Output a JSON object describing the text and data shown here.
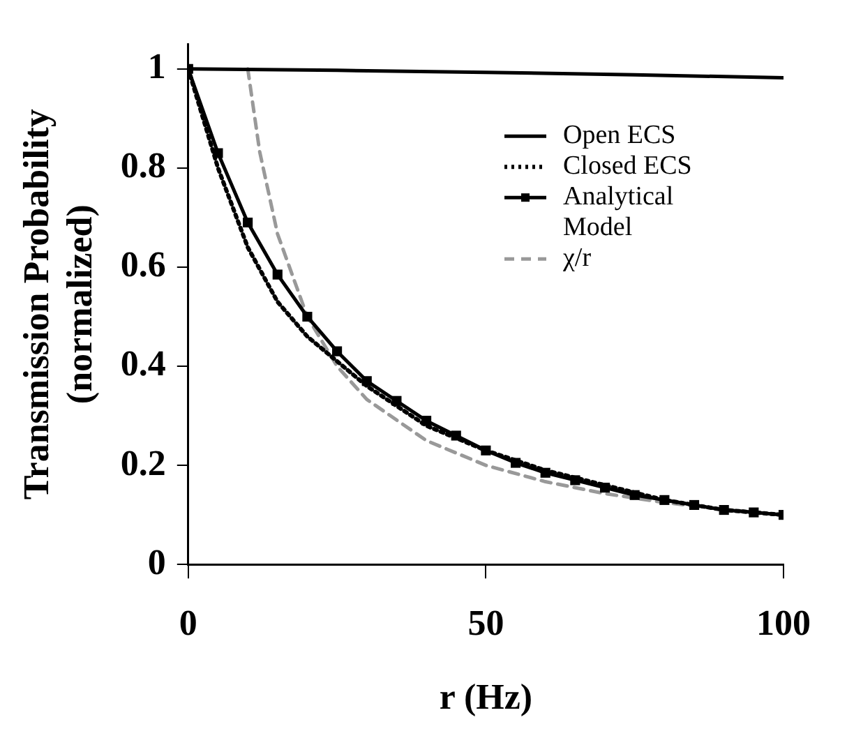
{
  "chart_data": {
    "type": "line",
    "xlabel": "r (Hz)",
    "ylabel": "Transmission Probability (normalized)",
    "xlim": [
      0,
      100
    ],
    "xticks": [
      0,
      50,
      100
    ],
    "ylim": [
      0,
      1.05
    ],
    "yticks": [
      0,
      0.2,
      0.4,
      0.6,
      0.8,
      1
    ],
    "grid": false,
    "legend": "top right",
    "series": [
      {
        "name": "Open ECS",
        "color": "#000000",
        "line_style": "solid",
        "marker": "none",
        "x": [
          0,
          25,
          50,
          75,
          100
        ],
        "values": [
          1,
          0.997,
          0.993,
          0.988,
          0.982
        ]
      },
      {
        "name": "Closed ECS",
        "color": "#000000",
        "line_style": "dotted",
        "marker": "none",
        "x": [
          0,
          5,
          10,
          15,
          20,
          25,
          30,
          40,
          50,
          60,
          70,
          80,
          90,
          100
        ],
        "values": [
          1,
          0.8,
          0.64,
          0.53,
          0.46,
          0.41,
          0.36,
          0.28,
          0.23,
          0.19,
          0.16,
          0.13,
          0.11,
          0.1
        ]
      },
      {
        "name": "Analytical Model",
        "color": "#000000",
        "line_style": "solid",
        "marker": "square",
        "x": [
          0,
          5,
          10,
          15,
          20,
          25,
          30,
          35,
          40,
          45,
          50,
          55,
          60,
          65,
          70,
          75,
          80,
          85,
          90,
          95,
          100
        ],
        "values": [
          1,
          0.83,
          0.69,
          0.585,
          0.5,
          0.43,
          0.37,
          0.33,
          0.29,
          0.26,
          0.23,
          0.205,
          0.185,
          0.17,
          0.155,
          0.14,
          0.13,
          0.12,
          0.11,
          0.105,
          0.1
        ]
      },
      {
        "name": "χ/r",
        "color": "#999999",
        "line_style": "dashed",
        "marker": "none",
        "x": [
          10,
          12,
          15,
          20,
          25,
          30,
          40,
          50,
          60,
          70,
          80,
          90,
          100
        ],
        "values": [
          1,
          0.833,
          0.667,
          0.5,
          0.4,
          0.333,
          0.25,
          0.2,
          0.167,
          0.143,
          0.125,
          0.111,
          0.1
        ]
      }
    ]
  }
}
